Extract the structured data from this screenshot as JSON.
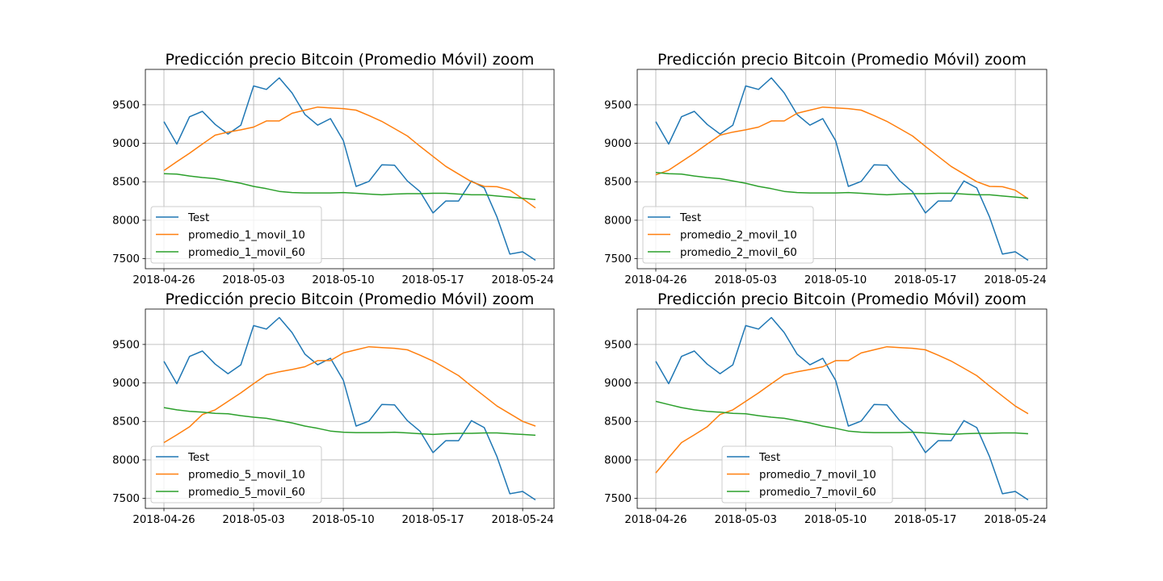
{
  "colors": {
    "Test": "#1f77b4",
    "movil_10": "#ff7f0e",
    "movil_60": "#2ca02c",
    "grid": "#b0b0b0"
  },
  "chart_data": [
    {
      "type": "line",
      "title": "Predicción precio Bitcoin (Promedio Móvil) zoom",
      "xlabel": "",
      "ylabel": "",
      "x": [
        "2018-04-26",
        "2018-04-27",
        "2018-04-28",
        "2018-04-29",
        "2018-04-30",
        "2018-05-01",
        "2018-05-02",
        "2018-05-03",
        "2018-05-04",
        "2018-05-05",
        "2018-05-06",
        "2018-05-07",
        "2018-05-08",
        "2018-05-09",
        "2018-05-10",
        "2018-05-11",
        "2018-05-12",
        "2018-05-13",
        "2018-05-14",
        "2018-05-15",
        "2018-05-16",
        "2018-05-17",
        "2018-05-18",
        "2018-05-19",
        "2018-05-20",
        "2018-05-21",
        "2018-05-22",
        "2018-05-23",
        "2018-05-24",
        "2018-05-25"
      ],
      "xticks": [
        "2018-04-26",
        "2018-05-03",
        "2018-05-10",
        "2018-05-17",
        "2018-05-24"
      ],
      "ylim": [
        7370,
        9960
      ],
      "yticks": [
        7500,
        8000,
        8500,
        9000,
        9500
      ],
      "grid": true,
      "legend": "lower left",
      "series": [
        {
          "name": "Test",
          "values": [
            9280,
            8990,
            9345,
            9415,
            9245,
            9120,
            9235,
            9745,
            9700,
            9850,
            9655,
            9375,
            9235,
            9320,
            9035,
            8440,
            8505,
            8720,
            8715,
            8510,
            8370,
            8095,
            8250,
            8250,
            8510,
            8420,
            8040,
            7560,
            7590,
            7480
          ]
        },
        {
          "name": "promedio_1_movil_10",
          "values": [
            8645,
            8760,
            8870,
            8990,
            9105,
            9145,
            9175,
            9210,
            9290,
            9290,
            9390,
            9430,
            9470,
            9460,
            9450,
            9430,
            9360,
            9285,
            9190,
            9095,
            8960,
            8830,
            8700,
            8600,
            8500,
            8440,
            8435,
            8390,
            8280,
            8160
          ]
        },
        {
          "name": "promedio_1_movil_60",
          "values": [
            8605,
            8600,
            8575,
            8555,
            8540,
            8510,
            8480,
            8440,
            8410,
            8375,
            8360,
            8355,
            8355,
            8355,
            8360,
            8350,
            8340,
            8330,
            8340,
            8345,
            8345,
            8350,
            8350,
            8340,
            8330,
            8330,
            8315,
            8300,
            8285,
            8270
          ]
        }
      ]
    },
    {
      "type": "line",
      "title": "Predicción precio Bitcoin (Promedio Móvil) zoom",
      "xlabel": "",
      "ylabel": "",
      "x": [
        "2018-04-26",
        "2018-04-27",
        "2018-04-28",
        "2018-04-29",
        "2018-04-30",
        "2018-05-01",
        "2018-05-02",
        "2018-05-03",
        "2018-05-04",
        "2018-05-05",
        "2018-05-06",
        "2018-05-07",
        "2018-05-08",
        "2018-05-09",
        "2018-05-10",
        "2018-05-11",
        "2018-05-12",
        "2018-05-13",
        "2018-05-14",
        "2018-05-15",
        "2018-05-16",
        "2018-05-17",
        "2018-05-18",
        "2018-05-19",
        "2018-05-20",
        "2018-05-21",
        "2018-05-22",
        "2018-05-23",
        "2018-05-24",
        "2018-05-25"
      ],
      "xticks": [
        "2018-04-26",
        "2018-05-03",
        "2018-05-10",
        "2018-05-17",
        "2018-05-24"
      ],
      "ylim": [
        7370,
        9960
      ],
      "yticks": [
        7500,
        8000,
        8500,
        9000,
        9500
      ],
      "grid": true,
      "legend": "lower left",
      "series": [
        {
          "name": "Test",
          "values": [
            9280,
            8990,
            9345,
            9415,
            9245,
            9120,
            9235,
            9745,
            9700,
            9850,
            9655,
            9375,
            9235,
            9320,
            9035,
            8440,
            8505,
            8720,
            8715,
            8510,
            8370,
            8095,
            8250,
            8250,
            8510,
            8420,
            8040,
            7560,
            7590,
            7480
          ]
        },
        {
          "name": "promedio_2_movil_10",
          "values": [
            8590,
            8650,
            8760,
            8870,
            8990,
            9105,
            9145,
            9175,
            9210,
            9290,
            9290,
            9390,
            9430,
            9470,
            9460,
            9450,
            9430,
            9360,
            9285,
            9190,
            9095,
            8960,
            8830,
            8700,
            8600,
            8500,
            8440,
            8435,
            8390,
            8280
          ]
        },
        {
          "name": "promedio_2_movil_60",
          "values": [
            8620,
            8605,
            8600,
            8575,
            8555,
            8540,
            8510,
            8480,
            8440,
            8410,
            8375,
            8360,
            8355,
            8355,
            8355,
            8360,
            8350,
            8340,
            8330,
            8340,
            8345,
            8345,
            8350,
            8350,
            8340,
            8330,
            8330,
            8315,
            8300,
            8285
          ]
        }
      ]
    },
    {
      "type": "line",
      "title": "Predicción precio Bitcoin (Promedio Móvil) zoom",
      "xlabel": "",
      "ylabel": "",
      "x": [
        "2018-04-26",
        "2018-04-27",
        "2018-04-28",
        "2018-04-29",
        "2018-04-30",
        "2018-05-01",
        "2018-05-02",
        "2018-05-03",
        "2018-05-04",
        "2018-05-05",
        "2018-05-06",
        "2018-05-07",
        "2018-05-08",
        "2018-05-09",
        "2018-05-10",
        "2018-05-11",
        "2018-05-12",
        "2018-05-13",
        "2018-05-14",
        "2018-05-15",
        "2018-05-16",
        "2018-05-17",
        "2018-05-18",
        "2018-05-19",
        "2018-05-20",
        "2018-05-21",
        "2018-05-22",
        "2018-05-23",
        "2018-05-24",
        "2018-05-25"
      ],
      "xticks": [
        "2018-04-26",
        "2018-05-03",
        "2018-05-10",
        "2018-05-17",
        "2018-05-24"
      ],
      "ylim": [
        7370,
        9960
      ],
      "yticks": [
        7500,
        8000,
        8500,
        9000,
        9500
      ],
      "grid": true,
      "legend": "lower left",
      "series": [
        {
          "name": "Test",
          "values": [
            9280,
            8990,
            9345,
            9415,
            9245,
            9120,
            9235,
            9745,
            9700,
            9850,
            9655,
            9375,
            9235,
            9320,
            9035,
            8440,
            8505,
            8720,
            8715,
            8510,
            8370,
            8095,
            8250,
            8250,
            8510,
            8420,
            8040,
            7560,
            7590,
            7480
          ]
        },
        {
          "name": "promedio_5_movil_10",
          "values": [
            8225,
            8325,
            8430,
            8590,
            8650,
            8760,
            8870,
            8990,
            9105,
            9145,
            9175,
            9210,
            9290,
            9290,
            9390,
            9430,
            9470,
            9460,
            9450,
            9430,
            9360,
            9285,
            9190,
            9095,
            8960,
            8830,
            8700,
            8600,
            8500,
            8440
          ]
        },
        {
          "name": "promedio_5_movil_60",
          "values": [
            8680,
            8650,
            8630,
            8620,
            8605,
            8600,
            8575,
            8555,
            8540,
            8510,
            8480,
            8440,
            8410,
            8375,
            8360,
            8355,
            8355,
            8355,
            8360,
            8350,
            8340,
            8330,
            8340,
            8345,
            8345,
            8350,
            8350,
            8340,
            8330,
            8320
          ]
        }
      ]
    },
    {
      "type": "line",
      "title": "Predicción precio Bitcoin (Promedio Móvil) zoom",
      "xlabel": "",
      "ylabel": "",
      "x": [
        "2018-04-26",
        "2018-04-27",
        "2018-04-28",
        "2018-04-29",
        "2018-04-30",
        "2018-05-01",
        "2018-05-02",
        "2018-05-03",
        "2018-05-04",
        "2018-05-05",
        "2018-05-06",
        "2018-05-07",
        "2018-05-08",
        "2018-05-09",
        "2018-05-10",
        "2018-05-11",
        "2018-05-12",
        "2018-05-13",
        "2018-05-14",
        "2018-05-15",
        "2018-05-16",
        "2018-05-17",
        "2018-05-18",
        "2018-05-19",
        "2018-05-20",
        "2018-05-21",
        "2018-05-22",
        "2018-05-23",
        "2018-05-24",
        "2018-05-25"
      ],
      "xticks": [
        "2018-04-26",
        "2018-05-03",
        "2018-05-10",
        "2018-05-17",
        "2018-05-24"
      ],
      "ylim": [
        7370,
        9960
      ],
      "yticks": [
        7500,
        8000,
        8500,
        9000,
        9500
      ],
      "grid": true,
      "legend": "lower center",
      "series": [
        {
          "name": "Test",
          "values": [
            9280,
            8990,
            9345,
            9415,
            9245,
            9120,
            9235,
            9745,
            9700,
            9850,
            9655,
            9375,
            9235,
            9320,
            9035,
            8440,
            8505,
            8720,
            8715,
            8510,
            8370,
            8095,
            8250,
            8250,
            8510,
            8420,
            8040,
            7560,
            7590,
            7480
          ]
        },
        {
          "name": "promedio_7_movil_10",
          "values": [
            7830,
            8030,
            8225,
            8325,
            8430,
            8590,
            8650,
            8760,
            8870,
            8990,
            9105,
            9145,
            9175,
            9210,
            9290,
            9290,
            9390,
            9430,
            9470,
            9460,
            9450,
            9430,
            9360,
            9285,
            9190,
            9095,
            8960,
            8830,
            8700,
            8600
          ]
        },
        {
          "name": "promedio_7_movil_60",
          "values": [
            8760,
            8720,
            8680,
            8650,
            8630,
            8620,
            8605,
            8600,
            8575,
            8555,
            8540,
            8510,
            8480,
            8440,
            8410,
            8375,
            8360,
            8355,
            8355,
            8355,
            8360,
            8350,
            8340,
            8330,
            8340,
            8345,
            8345,
            8350,
            8350,
            8340
          ]
        }
      ]
    }
  ]
}
